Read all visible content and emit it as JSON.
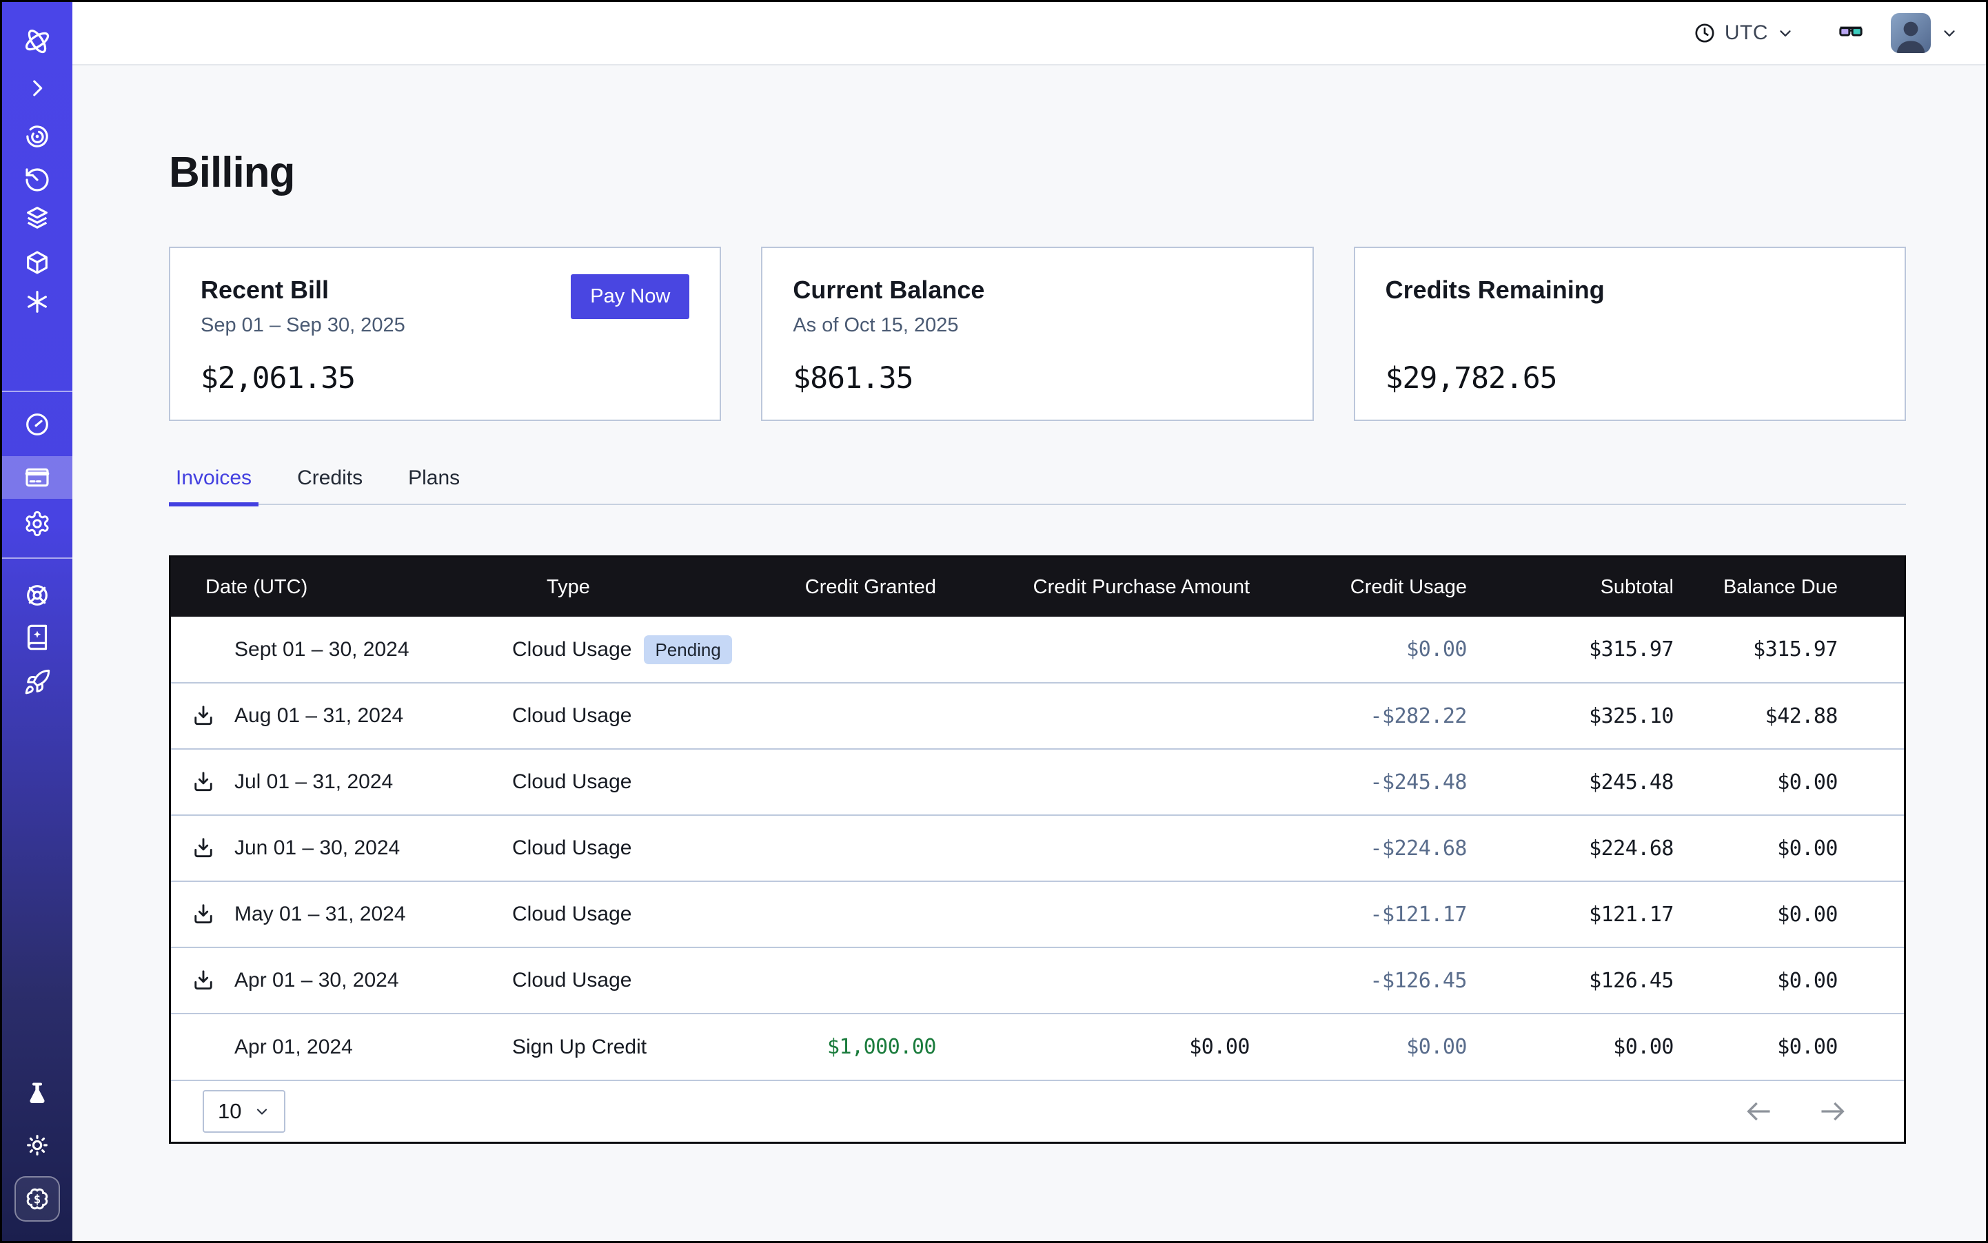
{
  "colors": {
    "accent": "#4946e1",
    "sidebar_top": "#4a45e8",
    "sidebar_bottom": "#1b1f4e",
    "table_header_bg": "#141419",
    "credit_usage_text": "#5a6d8c",
    "credit_granted_positive": "#1b7c3d",
    "pending_badge_bg": "#c6d8f6",
    "page_bg": "#f7f8fa"
  },
  "topbar": {
    "timezone": "UTC"
  },
  "page": {
    "title": "Billing"
  },
  "cards": [
    {
      "title": "Recent Bill",
      "subtitle": "Sep 01 – Sep 30, 2025",
      "amount": "$2,061.35",
      "action": "Pay Now"
    },
    {
      "title": "Current Balance",
      "subtitle": "As of Oct 15, 2025",
      "amount": "$861.35"
    },
    {
      "title": "Credits Remaining",
      "subtitle": "",
      "amount": "$29,782.65"
    }
  ],
  "tabs": [
    {
      "label": "Invoices",
      "active": true
    },
    {
      "label": "Credits",
      "active": false
    },
    {
      "label": "Plans",
      "active": false
    }
  ],
  "table": {
    "columns": [
      "Date (UTC)",
      "Type",
      "Credit Granted",
      "Credit Purchase Amount",
      "Credit Usage",
      "Subtotal",
      "Balance Due"
    ],
    "rows": [
      {
        "date": "Sept 01 – 30, 2024",
        "downloadable": false,
        "type": "Cloud Usage",
        "badge": "Pending",
        "credit_granted": "",
        "credit_purchase_amount": "",
        "credit_usage": "$0.00",
        "subtotal": "$315.97",
        "balance_due": "$315.97"
      },
      {
        "date": "Aug 01 – 31, 2024",
        "downloadable": true,
        "type": "Cloud Usage",
        "badge": "",
        "credit_granted": "",
        "credit_purchase_amount": "",
        "credit_usage": "-$282.22",
        "subtotal": "$325.10",
        "balance_due": "$42.88"
      },
      {
        "date": "Jul 01 – 31, 2024",
        "downloadable": true,
        "type": "Cloud Usage",
        "badge": "",
        "credit_granted": "",
        "credit_purchase_amount": "",
        "credit_usage": "-$245.48",
        "subtotal": "$245.48",
        "balance_due": "$0.00"
      },
      {
        "date": "Jun 01 – 30, 2024",
        "downloadable": true,
        "type": "Cloud Usage",
        "badge": "",
        "credit_granted": "",
        "credit_purchase_amount": "",
        "credit_usage": "-$224.68",
        "subtotal": "$224.68",
        "balance_due": "$0.00"
      },
      {
        "date": "May 01 – 31, 2024",
        "downloadable": true,
        "type": "Cloud Usage",
        "badge": "",
        "credit_granted": "",
        "credit_purchase_amount": "",
        "credit_usage": "-$121.17",
        "subtotal": "$121.17",
        "balance_due": "$0.00"
      },
      {
        "date": "Apr 01 – 30, 2024",
        "downloadable": true,
        "type": "Cloud Usage",
        "badge": "",
        "credit_granted": "",
        "credit_purchase_amount": "",
        "credit_usage": "-$126.45",
        "subtotal": "$126.45",
        "balance_due": "$0.00"
      },
      {
        "date": "Apr 01, 2024",
        "downloadable": false,
        "type": "Sign Up Credit",
        "badge": "",
        "credit_granted": "$1,000.00",
        "credit_purchase_amount": "$0.00",
        "credit_usage": "$0.00",
        "subtotal": "$0.00",
        "balance_due": "$0.00"
      }
    ]
  },
  "pagination": {
    "page_size": "10"
  }
}
